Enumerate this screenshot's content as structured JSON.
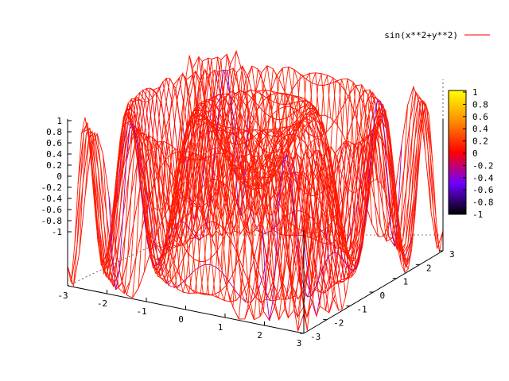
{
  "chart_data": {
    "type": "surface",
    "function": "sin(x**2+y**2)",
    "legend": {
      "label": "sin(x**2+y**2)",
      "color": "#ff0000",
      "placement": "top-right"
    },
    "x_range": [
      -3,
      3
    ],
    "y_range": [
      -3,
      3
    ],
    "z_range": [
      -1,
      1
    ],
    "x_ticks": [
      "-3",
      "-2",
      "-1",
      "0",
      "1",
      "2",
      "3"
    ],
    "y_ticks": [
      "-3",
      "-2",
      "-1",
      "0",
      "1",
      "2",
      "3"
    ],
    "z_ticks": [
      "1",
      "0.8",
      "0.6",
      "0.4",
      "0.2",
      "0",
      "-0.2",
      "-0.4",
      "-0.6",
      "-0.8",
      "-1"
    ],
    "colorbar": {
      "ticks": [
        "1",
        "0.8",
        "0.6",
        "0.4",
        "0.2",
        "0",
        "-0.2",
        "-0.4",
        "-0.6",
        "-0.8",
        "-1"
      ],
      "palette": [
        "#000000",
        "#7000ff",
        "#ff0000",
        "#ff8c00",
        "#ffff00"
      ]
    },
    "surface_color": "#ff0000",
    "grid": false
  }
}
